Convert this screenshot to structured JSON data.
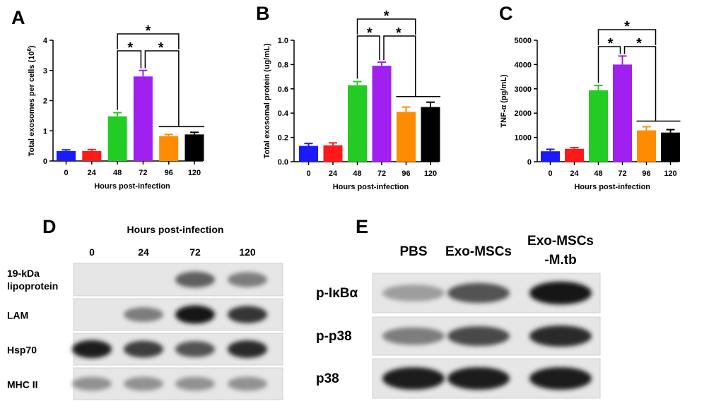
{
  "panels": {
    "A": "A",
    "B": "B",
    "C": "C",
    "D": "D",
    "E": "E"
  },
  "colors": [
    "#1a1aff",
    "#ff1a1a",
    "#22cc22",
    "#a020f0",
    "#ff8c00",
    "#000000"
  ],
  "star_symbol": "*",
  "chart_data": [
    {
      "type": "bar",
      "title": "",
      "categories": [
        "0",
        "24",
        "48",
        "72",
        "96",
        "120"
      ],
      "values": [
        0.33,
        0.33,
        1.48,
        2.8,
        0.82,
        0.88
      ],
      "errors": [
        0.04,
        0.05,
        0.12,
        0.2,
        0.06,
        0.07
      ],
      "ylim": [
        0,
        4
      ],
      "yticks": [
        0,
        1,
        2,
        3,
        4
      ],
      "xlabel": "Hours post-infection",
      "ylabel": "Total exosomes per cells (10",
      "ylabel_sup": "6",
      "ylabel_end": ")",
      "significance": [
        {
          "from": "48",
          "to": "72",
          "label": "*"
        },
        {
          "from": "72",
          "to": "96,120",
          "label": "*"
        },
        {
          "from": "48",
          "to": "96,120",
          "label": "*"
        }
      ]
    },
    {
      "type": "bar",
      "title": "",
      "categories": [
        "0",
        "24",
        "48",
        "72",
        "96",
        "120"
      ],
      "values": [
        0.13,
        0.135,
        0.63,
        0.79,
        0.41,
        0.45
      ],
      "errors": [
        0.02,
        0.02,
        0.03,
        0.03,
        0.04,
        0.04
      ],
      "ylim": [
        0,
        1.0
      ],
      "yticks": [
        "0.0",
        "0.2",
        "0.4",
        "0.6",
        "0.8",
        "1.0"
      ],
      "xlabel": "Hours post-infection",
      "ylabel": "Total exosomal protein (ug/mL)",
      "significance": [
        {
          "from": "48",
          "to": "72",
          "label": "*"
        },
        {
          "from": "72",
          "to": "96,120",
          "label": "*"
        },
        {
          "from": "48",
          "to": "96,120",
          "label": "*"
        }
      ]
    },
    {
      "type": "bar",
      "title": "",
      "categories": [
        "0",
        "24",
        "48",
        "72",
        "96",
        "120"
      ],
      "values": [
        430,
        530,
        2940,
        4000,
        1290,
        1200
      ],
      "errors": [
        80,
        50,
        200,
        350,
        150,
        120
      ],
      "ylim": [
        0,
        5000
      ],
      "yticks": [
        0,
        1000,
        2000,
        3000,
        4000,
        5000
      ],
      "xlabel": "Hours post-infection",
      "ylabel": "TNF-α (pg/mL)",
      "significance": [
        {
          "from": "48",
          "to": "72",
          "label": "*"
        },
        {
          "from": "72",
          "to": "96,120",
          "label": "*"
        },
        {
          "from": "48",
          "to": "96,120",
          "label": "*"
        }
      ]
    }
  ],
  "blot_d": {
    "title": "Hours post-infection",
    "lanes": [
      "0",
      "24",
      "72",
      "120"
    ],
    "rows": [
      {
        "label": "19-kDa",
        "label2": "lipoprotein",
        "intensities": [
          0,
          0,
          0.65,
          0.5
        ]
      },
      {
        "label": "LAM",
        "intensities": [
          0,
          0.5,
          1.0,
          0.85
        ]
      },
      {
        "label": "Hsp70",
        "intensities": [
          0.95,
          0.8,
          0.7,
          0.9
        ]
      },
      {
        "label": "MHC II",
        "intensities": [
          0.4,
          0.4,
          0.4,
          0.4
        ]
      }
    ]
  },
  "blot_e": {
    "lanes": [
      "PBS",
      "Exo-MSCs",
      "Exo-MSCs"
    ],
    "lane3_line2": "-M.tb",
    "rows": [
      {
        "label": "p-IκBα",
        "intensities": [
          0.35,
          0.7,
          1.0
        ]
      },
      {
        "label": "p-p38",
        "intensities": [
          0.5,
          0.75,
          0.9
        ]
      },
      {
        "label": "p38",
        "intensities": [
          0.95,
          0.95,
          0.95
        ]
      }
    ]
  }
}
